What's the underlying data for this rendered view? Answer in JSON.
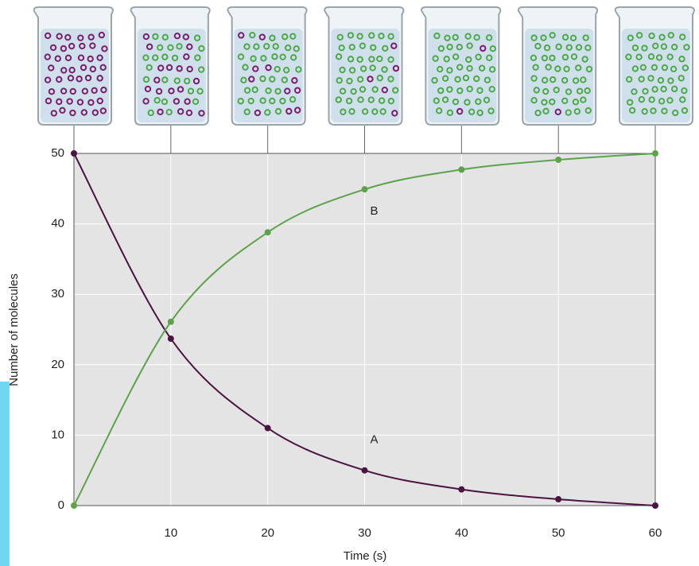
{
  "chart_data": {
    "type": "line",
    "x": [
      0,
      10,
      20,
      30,
      40,
      50,
      60
    ],
    "series": [
      {
        "name": "A",
        "color": "#4b1443",
        "values": [
          50,
          23.7,
          11,
          5,
          2.3,
          0.9,
          0
        ]
      },
      {
        "name": "B",
        "color": "#5ea24c",
        "values": [
          0,
          26.1,
          38.8,
          44.9,
          47.7,
          49.1,
          50
        ]
      }
    ],
    "xlim": [
      0,
      60
    ],
    "ylim": [
      0,
      50
    ],
    "xticks": [
      10,
      20,
      30,
      40,
      50,
      60
    ],
    "yticks": [
      0,
      10,
      20,
      30,
      40,
      50
    ],
    "xlabel": "Time (s)",
    "ylabel": "Number of molecules",
    "grid": true
  }
}
